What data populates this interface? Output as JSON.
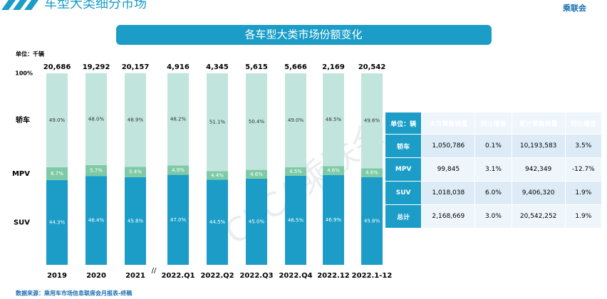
{
  "header": {
    "title": "车型大类细分市场",
    "logo": "乘联会"
  },
  "chart_data": {
    "type": "bar",
    "stacked": true,
    "title": "各车型大类市场份额变化",
    "unit": "单位：千辆",
    "categories": [
      "2019",
      "2020",
      "2021",
      "2022.Q1",
      "2022.Q2",
      "2022.Q3",
      "2022.Q4",
      "2022.12",
      "2022.1-12"
    ],
    "totals": {
      "values": [
        20686,
        19292,
        20157,
        4916,
        4345,
        5615,
        5666,
        2169,
        20542
      ],
      "value_labels": [
        "20,686",
        "19,292",
        "20,157",
        "4,916",
        "4,345",
        "5,615",
        "5,666",
        "2,169",
        "20,542"
      ]
    },
    "series": [
      {
        "name": "SUV",
        "color": "#1b9dc8",
        "values": [
          44.3,
          46.4,
          45.8,
          47,
          44.5,
          45,
          46.5,
          46.9,
          45.8
        ],
        "value_labels": [
          "44.3%",
          "46.4%",
          "45.8%",
          "47.0%",
          "44.5%",
          "45.0%",
          "46.5%",
          "46.9%",
          "45.8%"
        ]
      },
      {
        "name": "MPV",
        "color": "#7fcaa6",
        "values": [
          6.7,
          5.7,
          5.4,
          4.9,
          4.4,
          4.6,
          4.5,
          4.6,
          4.6
        ],
        "value_labels": [
          "6.7%",
          "5.7%",
          "5.4%",
          "4.9%",
          "4.4%",
          "4.6%",
          "4.5%",
          "4.6%",
          "4.6%"
        ]
      },
      {
        "name": "轿车",
        "color": "#c1e5dd",
        "values": [
          49,
          48,
          48.9,
          48.2,
          51.1,
          50.4,
          49,
          48.5,
          49.6
        ],
        "value_labels": [
          "49.0%",
          "48.0%",
          "48.9%",
          "48.2%",
          "51.1%",
          "50.4%",
          "49.0%",
          "48.5%",
          "49.6%"
        ]
      }
    ],
    "ylim": [
      0,
      100
    ],
    "yticks": [
      {
        "value": 100,
        "label": "100%"
      }
    ]
  },
  "table": {
    "header": [
      "单位：辆",
      "本月零售销量",
      "同比增速",
      "累计零售销量",
      "同比增速"
    ],
    "rows": [
      [
        "轿车",
        "1,050,786",
        "0.1%",
        "10,193,583",
        "3.5%"
      ],
      [
        "MPV",
        "99,845",
        "3.1%",
        "942,349",
        "-12.7%"
      ],
      [
        "SUV",
        "1,018,038",
        "6.0%",
        "9,406,320",
        "1.9%"
      ],
      [
        "总计",
        "2,168,669",
        "3.0%",
        "20,542,252",
        "1.9%"
      ]
    ]
  },
  "watermark": "CPCA乘联会",
  "footer": {
    "source": "数据来源：乘用车市场信息联席会月报表-终稿"
  }
}
